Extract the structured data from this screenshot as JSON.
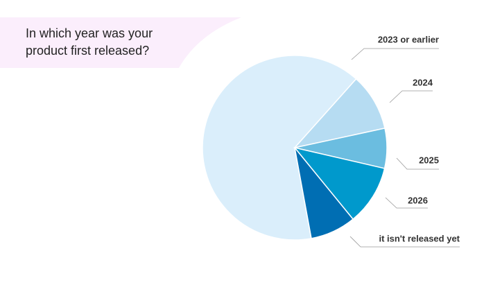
{
  "chart_data": {
    "type": "pie",
    "title": "In which year was your product first released?",
    "categories": [
      "2023 or earlier",
      "2024",
      "2025",
      "2026",
      "it isn't released yet"
    ],
    "values": [
      64.5,
      10,
      7,
      10.5,
      8
    ],
    "colors": [
      "#daeefb",
      "#b6dcf2",
      "#6bbde0",
      "#0099cc",
      "#006eb3"
    ]
  }
}
